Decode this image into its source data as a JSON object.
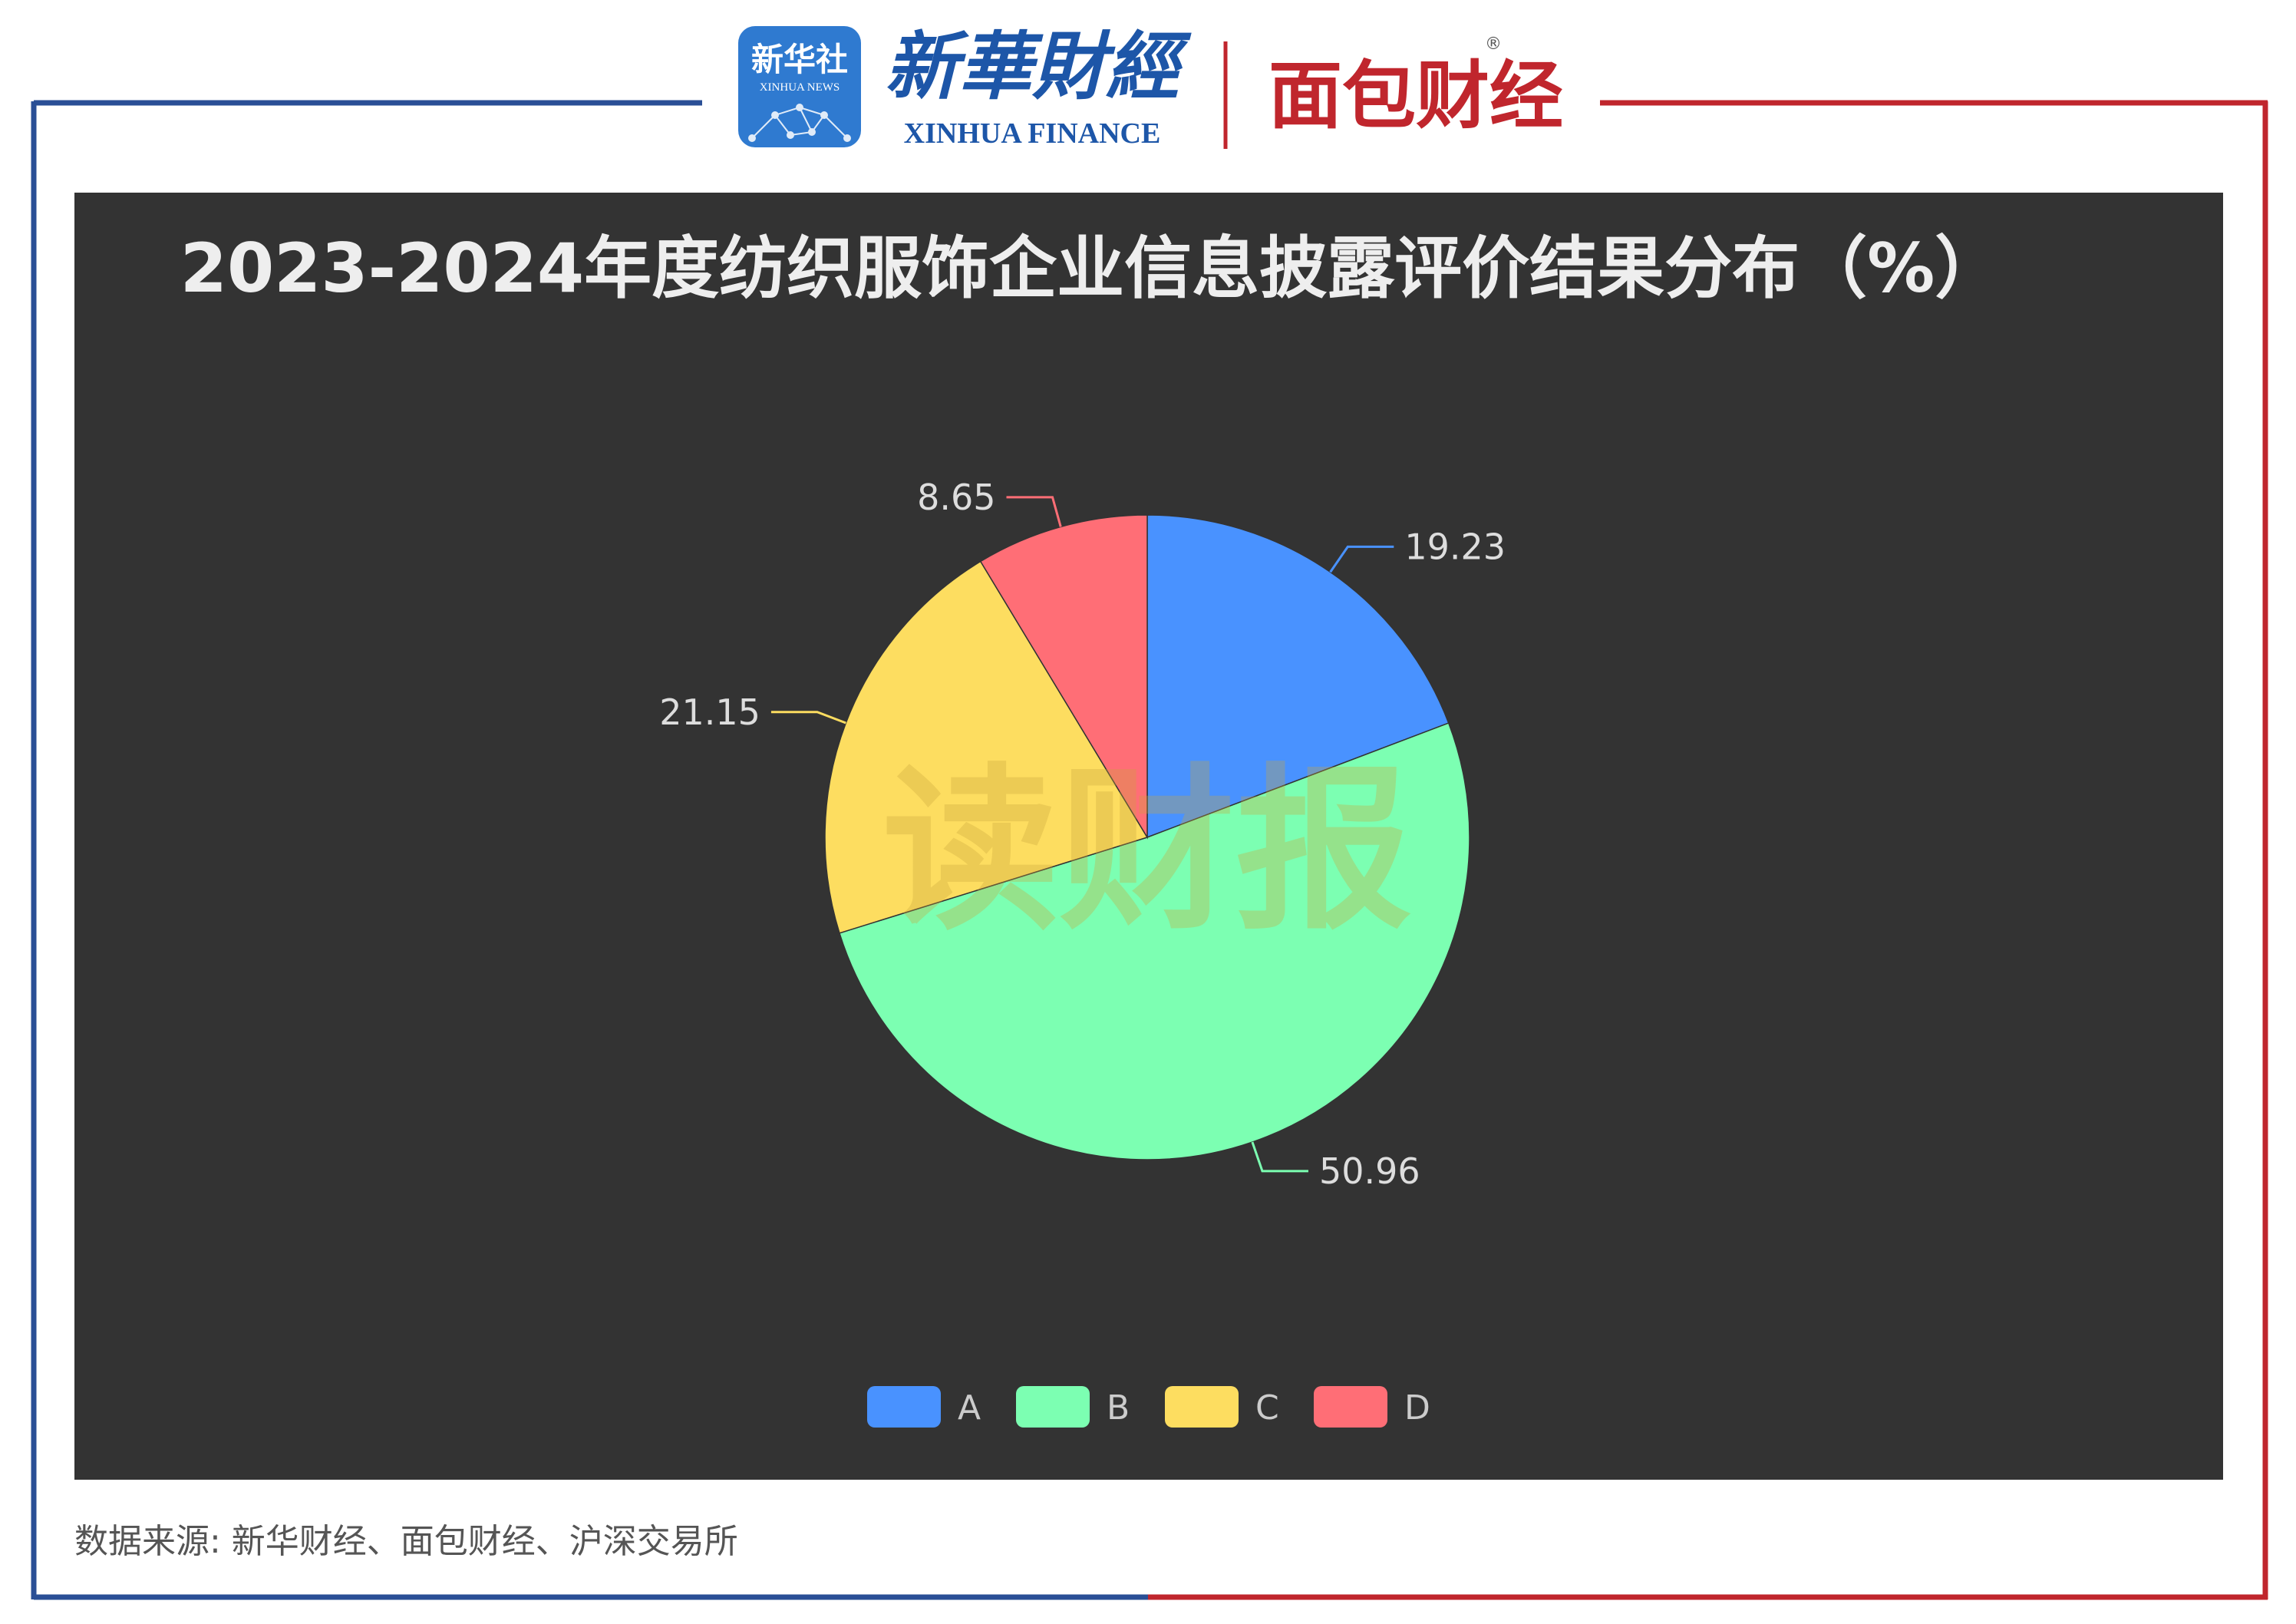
{
  "header": {
    "xinhua_badge_cn": "新华社",
    "xinhua_badge_en": "XINHUA NEWS",
    "xinhua_finance_cn": "新華財經",
    "xinhua_finance_en": "XINHUA FINANCE",
    "mianbao_cn": "面包财经",
    "registered_mark": "®"
  },
  "colors": {
    "frame_left": "#2a4f96",
    "frame_right": "#c0262d",
    "chart_bg": "#333333",
    "badge_bg": "#2f7ad0",
    "xinhua_finance_text": "#1d56a8",
    "mianbao_text": "#c0262d"
  },
  "watermark": "读财报",
  "chart_data": {
    "type": "pie",
    "title": "2023-2024年度纺织服饰企业信息披露评价结果分布（%）",
    "slices": [
      {
        "name": "A",
        "value": 19.23,
        "label": "19.23",
        "color": "#4992ff"
      },
      {
        "name": "B",
        "value": 50.96,
        "label": "50.96",
        "color": "#7cffb2"
      },
      {
        "name": "C",
        "value": 21.15,
        "label": "21.15",
        "color": "#fddd60"
      },
      {
        "name": "D",
        "value": 8.65,
        "label": "8.65",
        "color": "#ff6e76"
      }
    ],
    "legend_position": "bottom-center"
  },
  "source": "数据来源: 新华财经、面包财经、沪深交易所"
}
